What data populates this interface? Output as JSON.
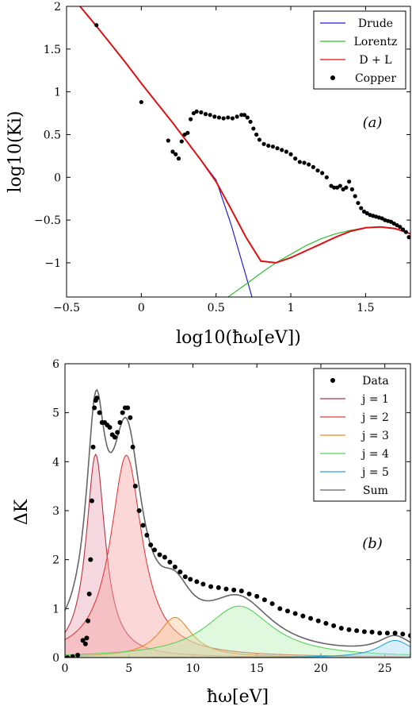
{
  "chart_data": [
    {
      "type": "line",
      "panel_label": "(a)",
      "xlabel": "log10(ħω[eV])",
      "ylabel": "log10(Ki)",
      "xlim": [
        -0.5,
        1.8
      ],
      "ylim": [
        -1.4,
        2
      ],
      "xticks": [
        -0.5,
        0,
        0.5,
        1,
        1.5
      ],
      "xtick_labels": [
        "−0.5",
        "0",
        "0.5",
        "1",
        "1.5"
      ],
      "yticks": [
        -1,
        -0.5,
        0,
        0.5,
        1,
        1.5,
        2
      ],
      "ytick_labels": [
        "−1",
        "−0.5",
        "0",
        "0.5",
        "1",
        "1.5",
        "2"
      ],
      "legend_position": "top-right",
      "grid": false,
      "series": [
        {
          "name": "Drude",
          "style": "line",
          "color": "#1f1fd6",
          "x": [
            -0.41,
            -0.3,
            -0.2,
            -0.1,
            0,
            0.1,
            0.2,
            0.3,
            0.4,
            0.5,
            0.6,
            0.7,
            0.74
          ],
          "y": [
            2.0,
            1.77,
            1.55,
            1.33,
            1.1,
            0.88,
            0.66,
            0.43,
            0.2,
            -0.03,
            -0.55,
            -1.15,
            -1.4
          ]
        },
        {
          "name": "Lorentz",
          "style": "line",
          "color": "#2fbf2f",
          "x": [
            0.58,
            0.7,
            0.8,
            0.9,
            1.0,
            1.1,
            1.2,
            1.3,
            1.4,
            1.5,
            1.6,
            1.7,
            1.8
          ],
          "y": [
            -1.4,
            -1.25,
            -1.12,
            -1.0,
            -0.9,
            -0.8,
            -0.72,
            -0.66,
            -0.62,
            -0.59,
            -0.58,
            -0.6,
            -0.66
          ]
        },
        {
          "name": "D + L",
          "style": "line",
          "color": "#dd1111",
          "x": [
            -0.41,
            -0.3,
            -0.2,
            -0.1,
            0,
            0.1,
            0.2,
            0.3,
            0.4,
            0.5,
            0.6,
            0.7,
            0.8,
            0.9,
            1.0,
            1.1,
            1.2,
            1.3,
            1.4,
            1.5,
            1.6,
            1.7,
            1.8
          ],
          "y": [
            2.0,
            1.77,
            1.55,
            1.33,
            1.1,
            0.88,
            0.66,
            0.43,
            0.2,
            -0.05,
            -0.37,
            -0.7,
            -0.98,
            -1.0,
            -0.94,
            -0.86,
            -0.78,
            -0.7,
            -0.63,
            -0.59,
            -0.58,
            -0.6,
            -0.66
          ]
        },
        {
          "name": "Copper",
          "style": "markers",
          "color": "#000000",
          "x": [
            -0.3,
            0.0,
            0.18,
            0.21,
            0.23,
            0.25,
            0.27,
            0.29,
            0.31,
            0.33,
            0.35,
            0.37,
            0.4,
            0.43,
            0.46,
            0.49,
            0.52,
            0.55,
            0.58,
            0.61,
            0.64,
            0.67,
            0.69,
            0.71,
            0.73,
            0.75,
            0.77,
            0.79,
            0.82,
            0.85,
            0.88,
            0.91,
            0.94,
            0.97,
            1.0,
            1.03,
            1.06,
            1.09,
            1.12,
            1.15,
            1.18,
            1.21,
            1.24,
            1.27,
            1.29,
            1.31,
            1.33,
            1.35,
            1.37,
            1.39,
            1.41,
            1.43,
            1.45,
            1.47,
            1.49,
            1.51,
            1.53,
            1.55,
            1.57,
            1.59,
            1.61,
            1.63,
            1.65,
            1.67,
            1.69,
            1.71,
            1.73,
            1.75,
            1.77,
            1.79
          ],
          "y": [
            1.78,
            0.88,
            0.43,
            0.3,
            0.27,
            0.22,
            0.42,
            0.5,
            0.52,
            0.68,
            0.75,
            0.77,
            0.76,
            0.74,
            0.73,
            0.71,
            0.7,
            0.69,
            0.7,
            0.69,
            0.71,
            0.73,
            0.73,
            0.7,
            0.65,
            0.57,
            0.5,
            0.44,
            0.39,
            0.37,
            0.36,
            0.34,
            0.32,
            0.3,
            0.27,
            0.22,
            0.18,
            0.17,
            0.15,
            0.12,
            0.08,
            0.05,
            0.0,
            -0.1,
            -0.12,
            -0.12,
            -0.1,
            -0.14,
            -0.12,
            -0.05,
            -0.14,
            -0.22,
            -0.3,
            -0.36,
            -0.4,
            -0.42,
            -0.44,
            -0.45,
            -0.46,
            -0.47,
            -0.48,
            -0.5,
            -0.51,
            -0.52,
            -0.54,
            -0.56,
            -0.58,
            -0.61,
            -0.64,
            -0.7
          ]
        }
      ]
    },
    {
      "type": "area",
      "panel_label": "(b)",
      "xlabel": "ħω[eV]",
      "ylabel": "ΔK",
      "xlim": [
        0,
        27
      ],
      "ylim": [
        0,
        6
      ],
      "xticks": [
        0,
        5,
        10,
        15,
        20,
        25
      ],
      "xtick_labels": [
        "0",
        "5",
        "10",
        "15",
        "20",
        "25"
      ],
      "yticks": [
        0,
        1,
        2,
        3,
        4,
        5,
        6
      ],
      "ytick_labels": [
        "0",
        "1",
        "2",
        "3",
        "4",
        "5",
        "6"
      ],
      "legend_position": "top-right",
      "grid": false,
      "lorentzians": [
        {
          "name": "j = 1",
          "color": "#b8323f",
          "fill": "#e6a7b7",
          "center": 2.4,
          "height": 4.15,
          "hwhm": 0.9
        },
        {
          "name": "j = 2",
          "color": "#e03c3c",
          "fill": "#f6a6a6",
          "center": 4.8,
          "height": 4.13,
          "hwhm": 1.5
        },
        {
          "name": "j = 3",
          "color": "#e8892a",
          "fill": "#f8cc9e",
          "center": 8.6,
          "height": 0.82,
          "hwhm": 1.6
        },
        {
          "name": "j = 4",
          "color": "#57d157",
          "fill": "#b9efb5",
          "center": 13.6,
          "height": 1.05,
          "hwhm": 3.2
        },
        {
          "name": "j = 5",
          "color": "#2aa4dc",
          "fill": "#a9dcf2",
          "center": 25.8,
          "height": 0.35,
          "hwhm": 1.6
        }
      ],
      "sum": {
        "name": "Sum",
        "color": "#666666"
      },
      "data_series": {
        "name": "Data",
        "color": "#000000",
        "x": [
          0.2,
          0.6,
          1.0,
          1.4,
          1.6,
          1.7,
          1.8,
          1.9,
          2.0,
          2.1,
          2.2,
          2.3,
          2.4,
          2.5,
          2.7,
          2.9,
          3.1,
          3.3,
          3.5,
          3.7,
          3.9,
          4.1,
          4.3,
          4.5,
          4.7,
          4.9,
          5.1,
          5.3,
          5.5,
          5.8,
          6.1,
          6.4,
          6.7,
          7.0,
          7.4,
          7.8,
          8.2,
          8.6,
          9.0,
          9.4,
          9.8,
          10.3,
          10.8,
          11.4,
          12.0,
          12.6,
          13.2,
          13.8,
          14.4,
          15.0,
          15.6,
          16.2,
          16.8,
          17.4,
          18.0,
          18.6,
          19.2,
          19.8,
          20.4,
          21.0,
          21.6,
          22.2,
          22.8,
          23.4,
          24.0,
          24.6,
          25.2,
          25.8,
          26.4,
          27.0
        ],
        "y": [
          0.0,
          0.02,
          0.05,
          0.35,
          0.28,
          0.4,
          0.75,
          1.3,
          2.0,
          3.2,
          4.3,
          5.1,
          5.25,
          5.3,
          5.0,
          4.8,
          4.8,
          4.75,
          4.7,
          4.55,
          4.5,
          4.6,
          4.8,
          5.0,
          5.1,
          5.1,
          4.9,
          4.3,
          3.5,
          3.0,
          2.7,
          2.5,
          2.3,
          2.2,
          2.1,
          2.05,
          1.95,
          1.85,
          1.75,
          1.65,
          1.6,
          1.55,
          1.5,
          1.45,
          1.43,
          1.4,
          1.38,
          1.36,
          1.3,
          1.25,
          1.18,
          1.1,
          1.0,
          0.95,
          0.9,
          0.85,
          0.8,
          0.75,
          0.7,
          0.65,
          0.6,
          0.57,
          0.55,
          0.53,
          0.52,
          0.5,
          0.5,
          0.5,
          0.48,
          0.45
        ]
      }
    }
  ]
}
